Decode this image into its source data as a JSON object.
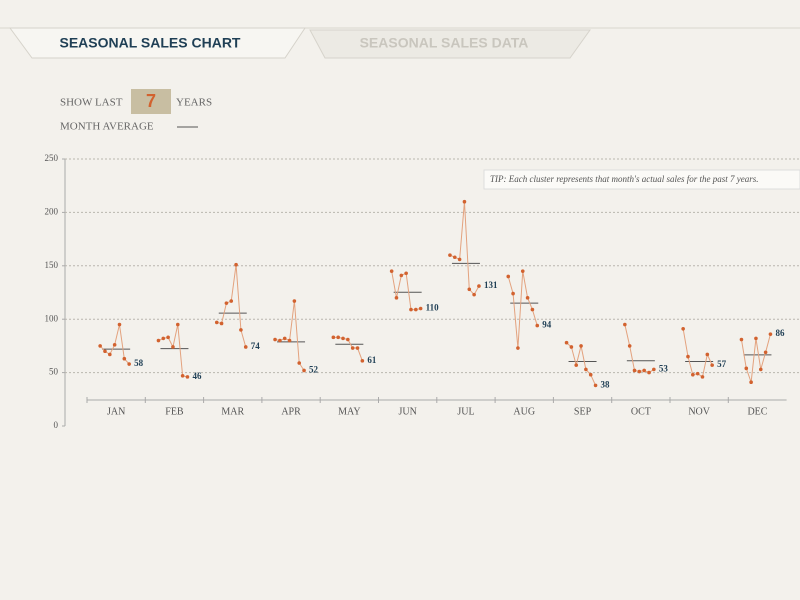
{
  "tabs": [
    "SEASONAL SALES CHART",
    "SEASONAL SALES DATA"
  ],
  "controls": {
    "show_last": "SHOW LAST",
    "years_value": "7",
    "years": "YEARS",
    "month_average": "MONTH AVERAGE"
  },
  "tip": "TIP:  Each cluster represents that month's actual sales for the past 7 years.",
  "chart_data": {
    "type": "cluster-line",
    "categories": [
      "JAN",
      "FEB",
      "MAR",
      "APR",
      "MAY",
      "JUN",
      "JUL",
      "AUG",
      "SEP",
      "OCT",
      "NOV",
      "DEC"
    ],
    "values": [
      [
        75,
        70,
        67,
        76,
        95,
        63,
        58
      ],
      [
        80,
        82,
        83,
        74,
        95,
        47,
        46
      ],
      [
        97,
        96,
        115,
        117,
        151,
        90,
        74
      ],
      [
        81,
        80,
        82,
        80,
        117,
        59,
        52
      ],
      [
        83,
        83,
        82,
        81,
        73,
        73,
        61
      ],
      [
        145,
        120,
        141,
        143,
        109,
        109,
        110
      ],
      [
        160,
        158,
        156,
        210,
        128,
        123,
        131
      ],
      [
        140,
        124,
        73,
        145,
        120,
        109,
        94
      ],
      [
        78,
        74,
        57,
        75,
        53,
        48,
        38
      ],
      [
        95,
        75,
        52,
        51,
        52,
        50,
        53
      ],
      [
        91,
        65,
        48,
        49,
        46,
        67,
        57
      ],
      [
        81,
        54,
        41,
        82,
        53,
        69,
        86
      ]
    ],
    "color": "#d2622f",
    "line_color": "#e3a27e",
    "average_color": "#555555",
    "label_color": "#1f3f55",
    "ylim": [
      0,
      250
    ],
    "yticks": [
      0,
      50,
      100,
      150,
      200,
      250
    ],
    "grid": true
  }
}
